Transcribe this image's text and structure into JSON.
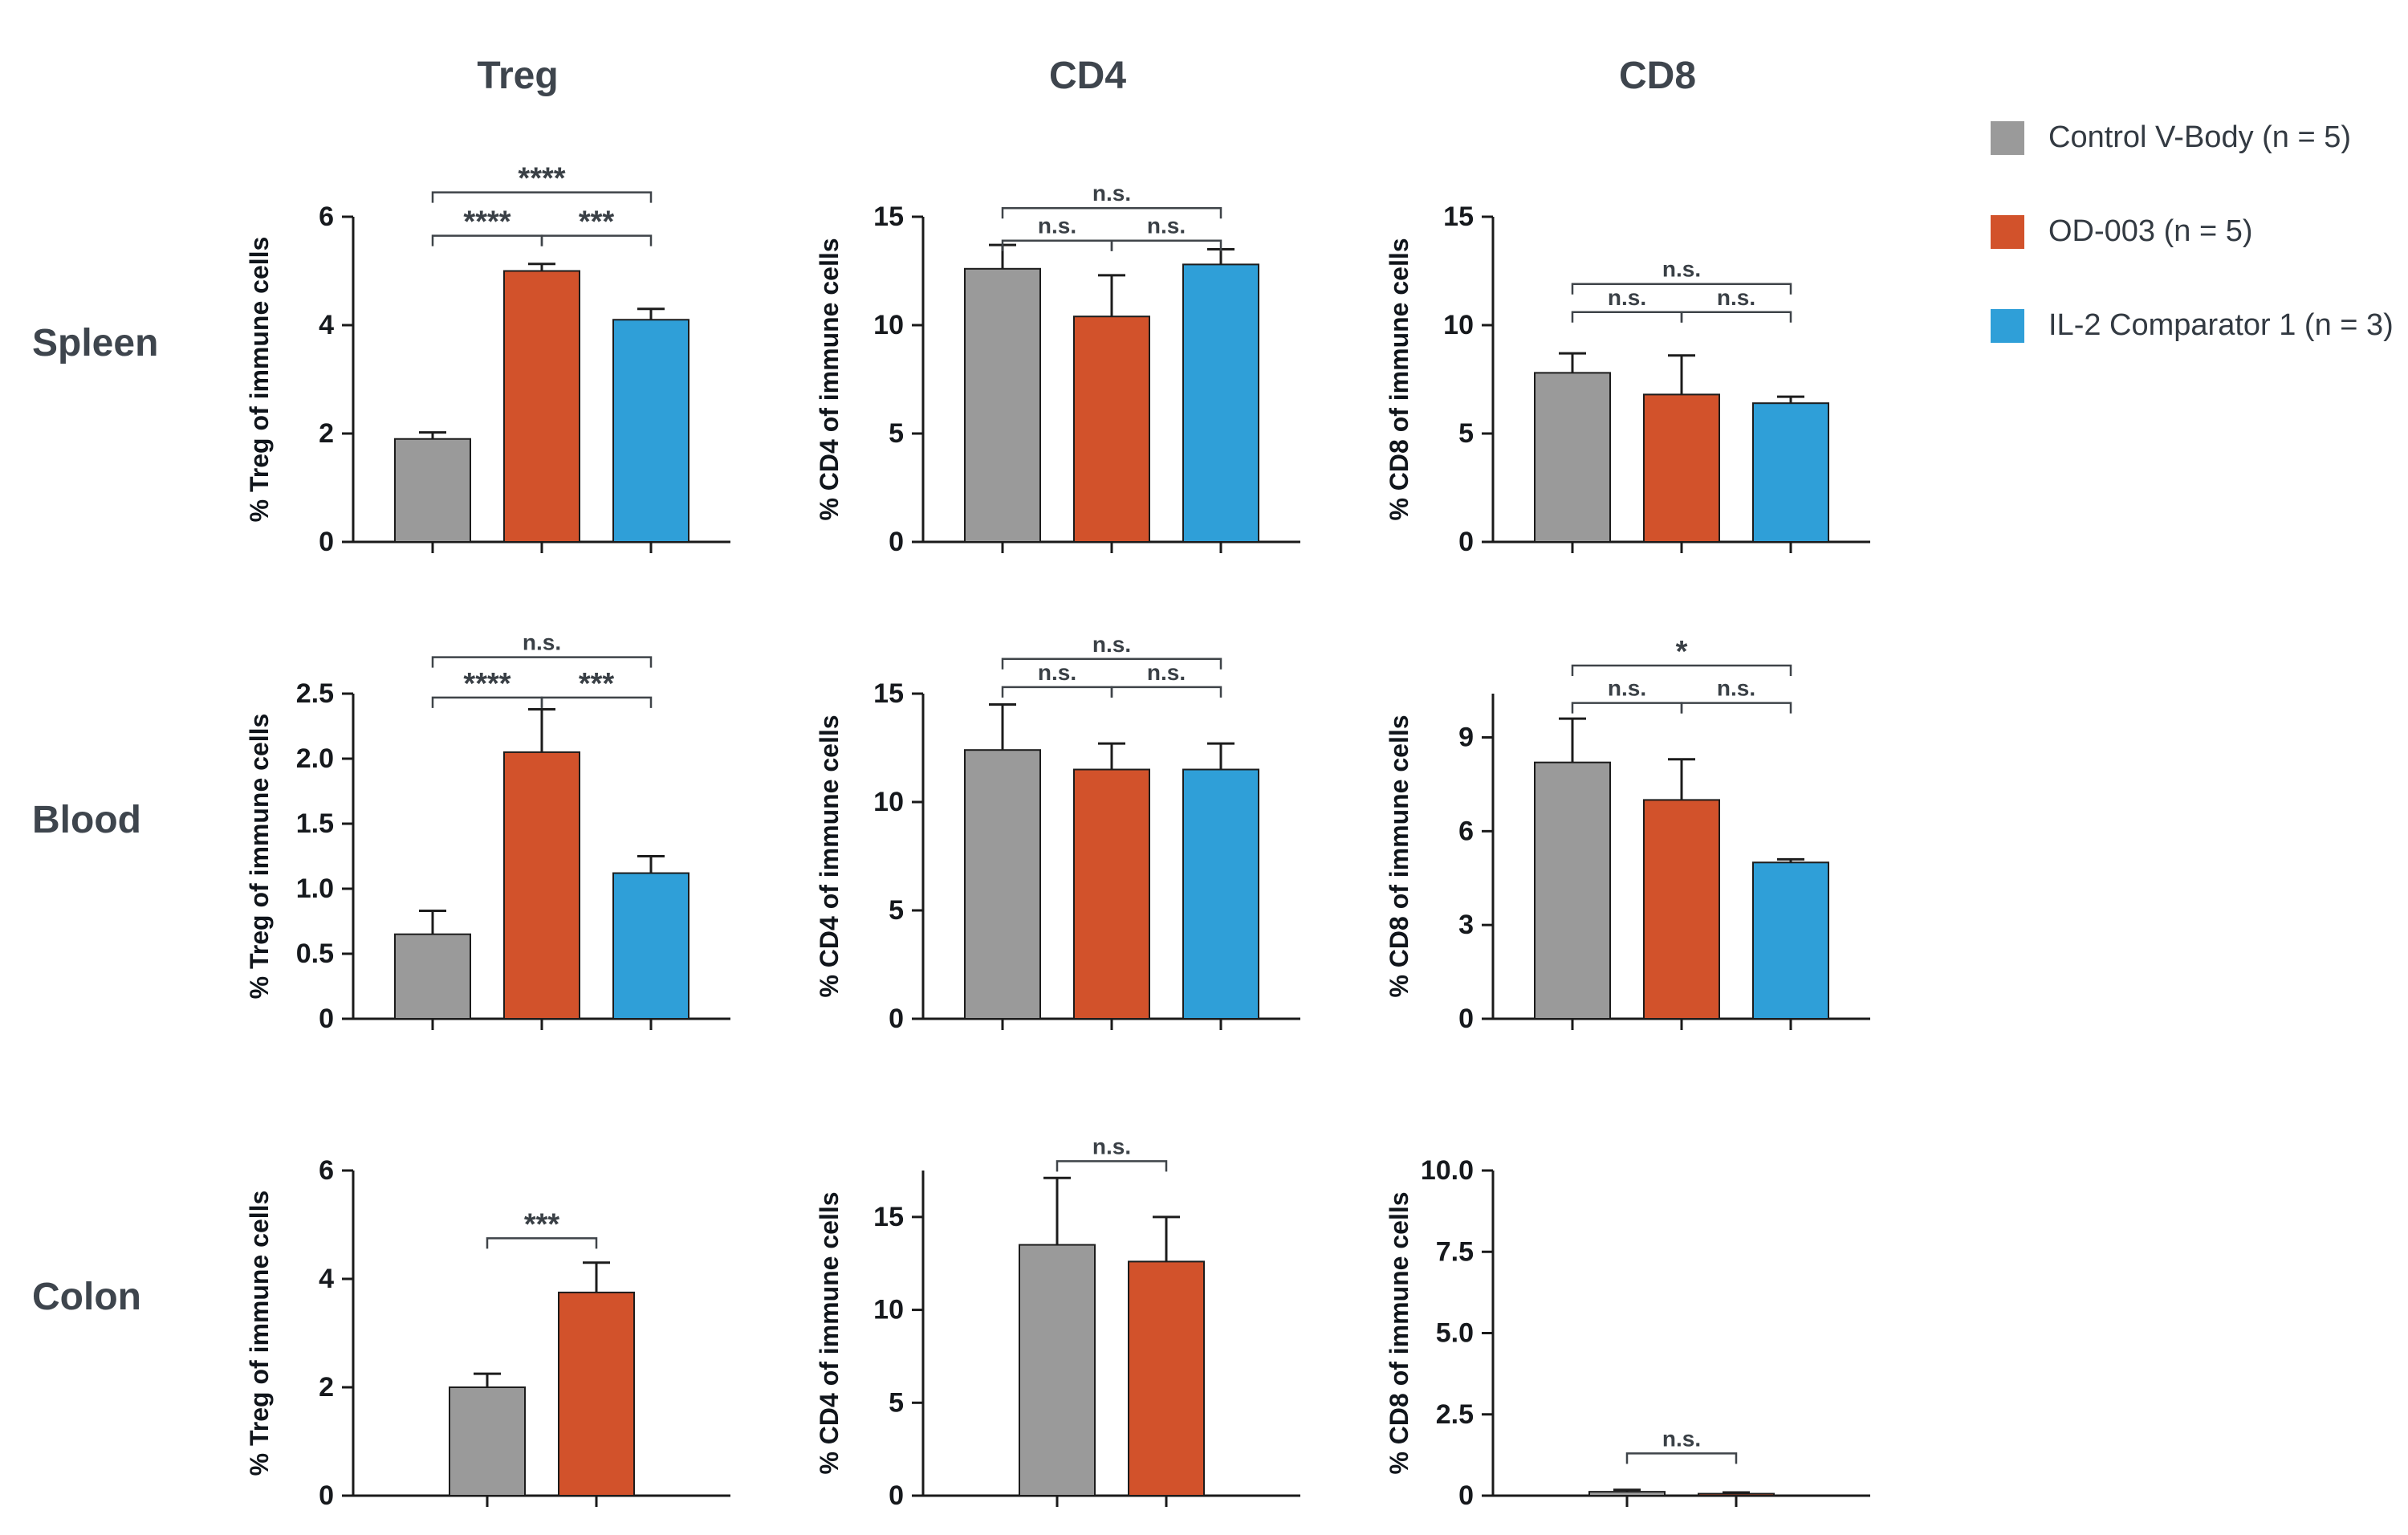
{
  "figure": {
    "columns": [
      {
        "label": "Treg"
      },
      {
        "label": "CD4"
      },
      {
        "label": "CD8"
      }
    ],
    "rows": [
      {
        "label": "Spleen"
      },
      {
        "label": "Blood"
      },
      {
        "label": "Colon"
      }
    ]
  },
  "palette": {
    "control": "#9a9a9a",
    "od003": "#d2522b",
    "il2": "#2f9fd8",
    "axis": "#1a1a1a",
    "bracket": "#3f4449",
    "title_text": "#3e454d"
  },
  "legend": {
    "items": [
      {
        "label": "Control V-Body (n = 5)",
        "color": "control"
      },
      {
        "label": "OD-003 (n = 5)",
        "color": "od003"
      },
      {
        "label": "IL-2 Comparator 1 (n = 3)",
        "color": "il2"
      }
    ]
  },
  "chart_data": [
    {
      "row": "Spleen",
      "col": "Treg",
      "type": "bar",
      "ylabel": "% Treg of immune cells",
      "ylim": [
        0,
        6
      ],
      "yticks": [
        0,
        2,
        4,
        6
      ],
      "ytick_labels": [
        "0",
        "2",
        "4",
        "6"
      ],
      "series": [
        {
          "name": "Control V-Body",
          "color": "control",
          "value": 1.9,
          "error": 0.12
        },
        {
          "name": "OD-003",
          "color": "od003",
          "value": 5.0,
          "error": 0.13
        },
        {
          "name": "IL-2 Comparator 1",
          "color": "il2",
          "value": 4.1,
          "error": 0.2
        }
      ],
      "significance": [
        {
          "from": 0,
          "to": 1,
          "label": "****",
          "y": 5.65
        },
        {
          "from": 1,
          "to": 2,
          "label": "***",
          "y": 5.65
        },
        {
          "from": 0,
          "to": 2,
          "label": "****",
          "y": 6.45
        }
      ]
    },
    {
      "row": "Spleen",
      "col": "CD4",
      "type": "bar",
      "ylabel": "% CD4 of immune cells",
      "ylim": [
        0,
        15
      ],
      "yticks": [
        0,
        5,
        10,
        15
      ],
      "ytick_labels": [
        "0",
        "5",
        "10",
        "15"
      ],
      "series": [
        {
          "name": "Control V-Body",
          "color": "control",
          "value": 12.6,
          "error": 1.1
        },
        {
          "name": "OD-003",
          "color": "od003",
          "value": 10.4,
          "error": 1.9
        },
        {
          "name": "IL-2 Comparator 1",
          "color": "il2",
          "value": 12.8,
          "error": 0.7
        }
      ],
      "significance": [
        {
          "from": 0,
          "to": 1,
          "label": "n.s.",
          "y": 13.9
        },
        {
          "from": 1,
          "to": 2,
          "label": "n.s.",
          "y": 13.9
        },
        {
          "from": 0,
          "to": 2,
          "label": "n.s.",
          "y": 15.4
        }
      ]
    },
    {
      "row": "Spleen",
      "col": "CD8",
      "type": "bar",
      "ylabel": "% CD8 of immune cells",
      "ylim": [
        0,
        15
      ],
      "yticks": [
        0,
        5,
        10,
        15
      ],
      "ytick_labels": [
        "0",
        "5",
        "10",
        "15"
      ],
      "series": [
        {
          "name": "Control V-Body",
          "color": "control",
          "value": 7.8,
          "error": 0.9
        },
        {
          "name": "OD-003",
          "color": "od003",
          "value": 6.8,
          "error": 1.8
        },
        {
          "name": "IL-2 Comparator 1",
          "color": "il2",
          "value": 6.4,
          "error": 0.3
        }
      ],
      "significance": [
        {
          "from": 0,
          "to": 1,
          "label": "n.s.",
          "y": 10.6
        },
        {
          "from": 1,
          "to": 2,
          "label": "n.s.",
          "y": 10.6
        },
        {
          "from": 0,
          "to": 2,
          "label": "n.s.",
          "y": 11.9
        }
      ]
    },
    {
      "row": "Blood",
      "col": "Treg",
      "type": "bar",
      "ylabel": "% Treg of immune cells",
      "ylim": [
        0,
        2.5
      ],
      "yticks": [
        0,
        0.5,
        1.0,
        1.5,
        2.0,
        2.5
      ],
      "ytick_labels": [
        "0",
        "0.5",
        "1.0",
        "1.5",
        "2.0",
        "2.5"
      ],
      "series": [
        {
          "name": "Control V-Body",
          "color": "control",
          "value": 0.65,
          "error": 0.18
        },
        {
          "name": "OD-003",
          "color": "od003",
          "value": 2.05,
          "error": 0.33
        },
        {
          "name": "IL-2 Comparator 1",
          "color": "il2",
          "value": 1.12,
          "error": 0.13
        }
      ],
      "significance": [
        {
          "from": 0,
          "to": 1,
          "label": "****",
          "y": 2.47
        },
        {
          "from": 1,
          "to": 2,
          "label": "***",
          "y": 2.47
        },
        {
          "from": 0,
          "to": 2,
          "label": "n.s.",
          "y": 2.78
        }
      ]
    },
    {
      "row": "Blood",
      "col": "CD4",
      "type": "bar",
      "ylabel": "% CD4 of immune cells",
      "ylim": [
        0,
        15
      ],
      "yticks": [
        0,
        5,
        10,
        15
      ],
      "ytick_labels": [
        "0",
        "5",
        "10",
        "15"
      ],
      "series": [
        {
          "name": "Control V-Body",
          "color": "control",
          "value": 12.4,
          "error": 2.1
        },
        {
          "name": "OD-003",
          "color": "od003",
          "value": 11.5,
          "error": 1.2
        },
        {
          "name": "IL-2 Comparator 1",
          "color": "il2",
          "value": 11.5,
          "error": 1.2
        }
      ],
      "significance": [
        {
          "from": 0,
          "to": 1,
          "label": "n.s.",
          "y": 15.3
        },
        {
          "from": 1,
          "to": 2,
          "label": "n.s.",
          "y": 15.3
        },
        {
          "from": 0,
          "to": 2,
          "label": "n.s.",
          "y": 16.6
        }
      ]
    },
    {
      "row": "Blood",
      "col": "CD8",
      "type": "bar",
      "ylabel": "% CD8 of immune cells",
      "ylim": [
        0,
        10.4
      ],
      "yticks": [
        0,
        3,
        6,
        9
      ],
      "ytick_labels": [
        "0",
        "3",
        "6",
        "9"
      ],
      "series": [
        {
          "name": "Control V-Body",
          "color": "control",
          "value": 8.2,
          "error": 1.4
        },
        {
          "name": "OD-003",
          "color": "od003",
          "value": 7.0,
          "error": 1.3
        },
        {
          "name": "IL-2 Comparator 1",
          "color": "il2",
          "value": 5.0,
          "error": 0.1
        }
      ],
      "significance": [
        {
          "from": 0,
          "to": 1,
          "label": "n.s.",
          "y": 10.1
        },
        {
          "from": 1,
          "to": 2,
          "label": "n.s.",
          "y": 10.1
        },
        {
          "from": 0,
          "to": 2,
          "label": "*",
          "y": 11.3
        }
      ]
    },
    {
      "row": "Colon",
      "col": "Treg",
      "type": "bar",
      "ylabel": "% Treg of immune cells",
      "ylim": [
        0,
        6
      ],
      "yticks": [
        0,
        2,
        4,
        6
      ],
      "ytick_labels": [
        "0",
        "2",
        "4",
        "6"
      ],
      "series": [
        {
          "name": "Control V-Body",
          "color": "control",
          "value": 2.0,
          "error": 0.25
        },
        {
          "name": "OD-003",
          "color": "od003",
          "value": 3.75,
          "error": 0.55
        }
      ],
      "significance": [
        {
          "from": 0,
          "to": 1,
          "label": "***",
          "y": 4.75
        }
      ]
    },
    {
      "row": "Colon",
      "col": "CD4",
      "type": "bar",
      "ylabel": "% CD4 of immune cells",
      "ylim": [
        0,
        17.5
      ],
      "yticks": [
        0,
        5,
        10,
        15
      ],
      "ytick_labels": [
        "0",
        "5",
        "10",
        "15"
      ],
      "series": [
        {
          "name": "Control V-Body",
          "color": "control",
          "value": 13.5,
          "error": 3.6
        },
        {
          "name": "OD-003",
          "color": "od003",
          "value": 12.6,
          "error": 2.4
        }
      ],
      "significance": [
        {
          "from": 0,
          "to": 1,
          "label": "n.s.",
          "y": 18.0
        }
      ]
    },
    {
      "row": "Colon",
      "col": "CD8",
      "type": "bar",
      "ylabel": "% CD8 of immune cells",
      "ylim": [
        0,
        10
      ],
      "yticks": [
        0,
        2.5,
        5.0,
        7.5,
        10.0
      ],
      "ytick_labels": [
        "0",
        "2.5",
        "5.0",
        "7.5",
        "10.0"
      ],
      "series": [
        {
          "name": "Control V-Body",
          "color": "control",
          "value": 0.12,
          "error": 0.06
        },
        {
          "name": "OD-003",
          "color": "od003",
          "value": 0.06,
          "error": 0.04
        }
      ],
      "significance": [
        {
          "from": 0,
          "to": 1,
          "label": "n.s.",
          "y": 1.3
        }
      ]
    }
  ]
}
